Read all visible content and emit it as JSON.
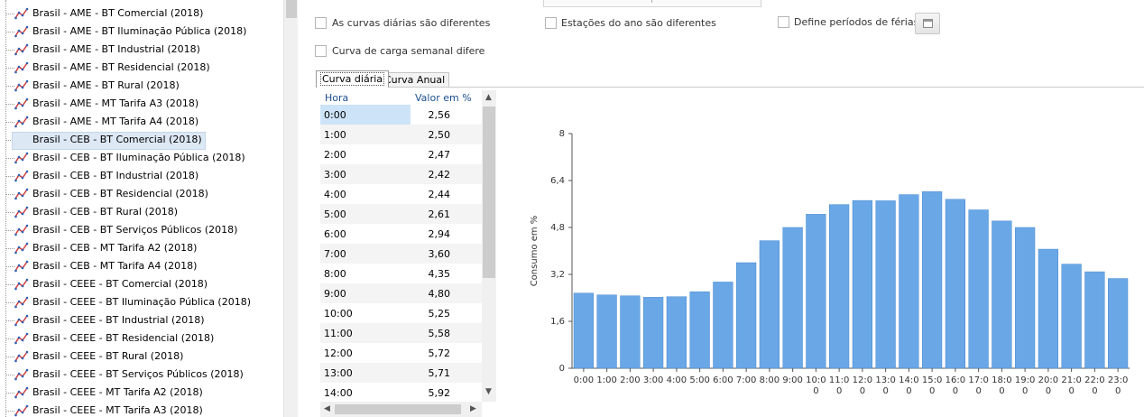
{
  "tree": {
    "items": [
      "Brasil - AME - BT Comercial (2018)",
      "Brasil - AME - BT Iluminação Pública (2018)",
      "Brasil - AME - BT Industrial (2018)",
      "Brasil - AME - BT Residencial (2018)",
      "Brasil - AME - BT Rural (2018)",
      "Brasil - AME - MT Tarifa A3 (2018)",
      "Brasil - AME - MT Tarifa A4 (2018)",
      "Brasil - CEB - BT Comercial (2018)",
      "Brasil - CEB - BT Iluminação Pública (2018)",
      "Brasil - CEB - BT Industrial (2018)",
      "Brasil - CEB - BT Residencial (2018)",
      "Brasil - CEB - BT Rural (2018)",
      "Brasil - CEB - BT Serviços Públicos (2018)",
      "Brasil - CEB - MT Tarifa A2 (2018)",
      "Brasil - CEB - MT Tarifa A4 (2018)",
      "Brasil - CEEE - BT Comercial (2018)",
      "Brasil - CEEE - BT Iluminação Pública (2018)",
      "Brasil - CEEE - BT Industrial (2018)",
      "Brasil - CEEE - BT Residencial (2018)",
      "Brasil - CEEE - BT Rural (2018)",
      "Brasil - CEEE - BT Serviços Públicos (2018)",
      "Brasil - CEEE - MT Tarifa A2 (2018)",
      "Brasil - CEEE - MT Tarifa A3 (2018)"
    ],
    "selected_index": 7,
    "icon": "load-curve-icon"
  },
  "options": {
    "daily_curves_label": "As curvas diárias são diferentes",
    "seasons_label": "Estações do ano são diferentes",
    "vacation_label": "Define períodos de férias",
    "weekly_curve_label": "Curva de carga semanal difere",
    "calendar_icon": "calendar-icon"
  },
  "tabs": {
    "daily": "Curva diária",
    "annual": "Curva Anual"
  },
  "grid": {
    "col_hour": "Hora",
    "col_value": "Valor em %",
    "rows": [
      {
        "hour": "0:00",
        "value": "2,56"
      },
      {
        "hour": "1:00",
        "value": "2,50"
      },
      {
        "hour": "2:00",
        "value": "2,47"
      },
      {
        "hour": "3:00",
        "value": "2,42"
      },
      {
        "hour": "4:00",
        "value": "2,44"
      },
      {
        "hour": "5:00",
        "value": "2,61"
      },
      {
        "hour": "6:00",
        "value": "2,94"
      },
      {
        "hour": "7:00",
        "value": "3,60"
      },
      {
        "hour": "8:00",
        "value": "4,35"
      },
      {
        "hour": "9:00",
        "value": "4,80"
      },
      {
        "hour": "10:00",
        "value": "5,25"
      },
      {
        "hour": "11:00",
        "value": "5,58"
      },
      {
        "hour": "12:00",
        "value": "5,72"
      },
      {
        "hour": "13:00",
        "value": "5,71"
      },
      {
        "hour": "14:00",
        "value": "5,92"
      }
    ]
  },
  "chart_data": {
    "type": "bar",
    "ylabel": "Consumo em %",
    "ylim": [
      0,
      8
    ],
    "yticks": [
      "0",
      "1,6",
      "3,2",
      "4,8",
      "6,4",
      "8"
    ],
    "ytick_values": [
      0,
      1.6,
      3.2,
      4.8,
      6.4,
      8
    ],
    "categories": [
      "0:00",
      "1:00",
      "2:00",
      "3:00",
      "4:00",
      "5:00",
      "6:00",
      "7:00",
      "8:00",
      "9:00",
      "10:00",
      "11:00",
      "12:00",
      "13:00",
      "14:00",
      "15:00",
      "16:00",
      "17:00",
      "18:00",
      "19:00",
      "20:00",
      "21:00",
      "22:00",
      "23:00"
    ],
    "tick_labels": [
      [
        "0:00"
      ],
      [
        "1:00"
      ],
      [
        "2:00"
      ],
      [
        "3:00"
      ],
      [
        "4:00"
      ],
      [
        "5:00"
      ],
      [
        "6:00"
      ],
      [
        "7:00"
      ],
      [
        "8:00"
      ],
      [
        "9:00"
      ],
      [
        "10:0",
        "0"
      ],
      [
        "11:0",
        "0"
      ],
      [
        "12:0",
        "0"
      ],
      [
        "13:0",
        "0"
      ],
      [
        "14:0",
        "0"
      ],
      [
        "15:0",
        "0"
      ],
      [
        "16:0",
        "0"
      ],
      [
        "17:0",
        "0"
      ],
      [
        "18:0",
        "0"
      ],
      [
        "19:0",
        "0"
      ],
      [
        "20:0",
        "0"
      ],
      [
        "21:0",
        "0"
      ],
      [
        "22:0",
        "0"
      ],
      [
        "23:0",
        "0"
      ]
    ],
    "values": [
      2.56,
      2.5,
      2.47,
      2.42,
      2.44,
      2.61,
      2.94,
      3.6,
      4.35,
      4.8,
      5.25,
      5.58,
      5.72,
      5.71,
      5.92,
      6.02,
      5.76,
      5.4,
      5.02,
      4.8,
      4.06,
      3.55,
      3.29,
      3.06
    ],
    "grid": false,
    "bar_color": "#6aa7e6",
    "bar_edge_color": "#4a8bd0"
  }
}
